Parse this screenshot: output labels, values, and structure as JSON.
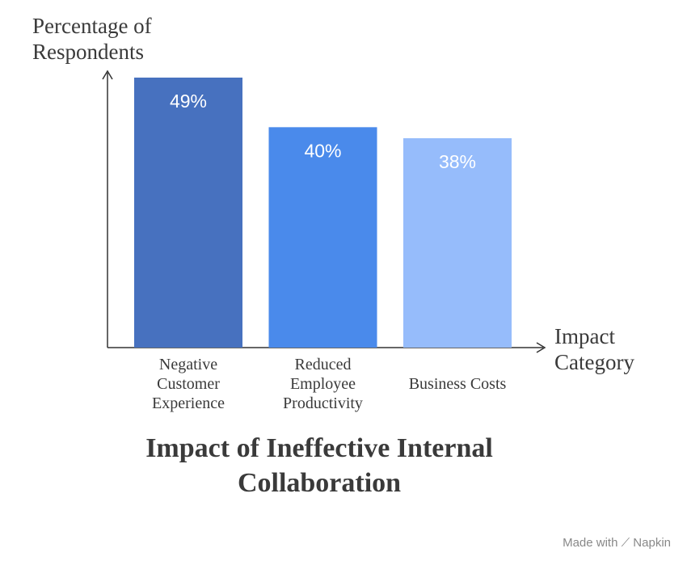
{
  "chart_data": {
    "type": "bar",
    "title": "Impact of Ineffective Internal Collaboration",
    "y_label": "Percentage of Respondents",
    "x_label": "Impact Category",
    "categories": [
      "Negative Customer Experience",
      "Reduced Employee Productivity",
      "Business Costs"
    ],
    "values": [
      49,
      40,
      38
    ],
    "value_labels": [
      "49%",
      "40%",
      "38%"
    ],
    "colors": [
      "#4771bf",
      "#4a8aeb",
      "#96bcfb"
    ],
    "ylim": [
      0,
      49
    ]
  },
  "watermark": {
    "prefix": "Made with",
    "brand": "Napkin"
  }
}
